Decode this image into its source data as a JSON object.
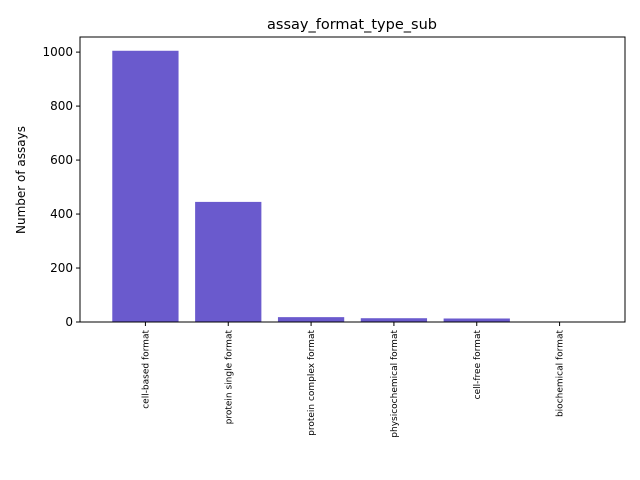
{
  "chart_data": {
    "type": "bar",
    "title": "assay_format_type_sub",
    "xlabel": "",
    "ylabel": "Number of assays",
    "categories": [
      "cell-based format",
      "protein single format",
      "protein complex format",
      "physicochemical format",
      "cell-free format",
      "biochemical format"
    ],
    "values": [
      1005,
      445,
      18,
      14,
      13,
      1
    ],
    "ylim": [
      0,
      1056
    ],
    "yticks": [
      0,
      200,
      400,
      600,
      800,
      1000
    ],
    "bar_color": "#6a5acd",
    "grid": false,
    "legend": "none"
  }
}
